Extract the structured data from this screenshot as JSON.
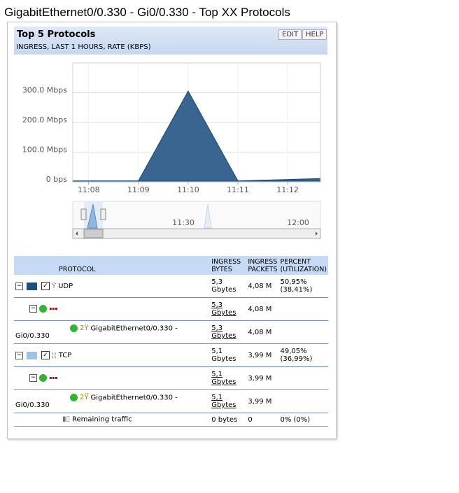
{
  "page_title": "GigabitEthernet0/0.330 - Gi0/0.330 - Top XX Protocols",
  "widget": {
    "title": "Top 5 Protocols",
    "subtitle": "INGRESS, LAST 1 HOURS, RATE (KBPS)",
    "buttons": [
      "EDIT",
      "HELP"
    ]
  },
  "chart_data": {
    "type": "area",
    "x": [
      667.68,
      669,
      670,
      671,
      672.66
    ],
    "xlim": [
      667.68,
      672.66
    ],
    "xticks": [
      {
        "value": 668,
        "label": "11:08"
      },
      {
        "value": 669,
        "label": "11:09"
      },
      {
        "value": 670,
        "label": "11:10"
      },
      {
        "value": 671,
        "label": "11:11"
      },
      {
        "value": 672,
        "label": "11:12"
      }
    ],
    "ylim": [
      0,
      400
    ],
    "yticks": [
      {
        "value": 0,
        "label": "0 bps"
      },
      {
        "value": 100,
        "label": "100.0 Mbps"
      },
      {
        "value": 200,
        "label": "200.0 Mbps"
      },
      {
        "value": 300,
        "label": "300.0 Mbps"
      }
    ],
    "stacked": true,
    "grid": true,
    "series": [
      {
        "name": "TCP",
        "color": "#9dc3e6",
        "values": [
          2,
          2,
          2,
          2,
          3
        ]
      },
      {
        "name": "UDP",
        "color": "#3a6591",
        "values": [
          1,
          1,
          303,
          1,
          8
        ]
      }
    ],
    "navigator_labels": [
      "11:30",
      "12:00"
    ]
  },
  "table": {
    "headers": [
      "PROTOCOL",
      "INGRESS BYTES",
      "INGRESS PACKETS",
      "PERCENT (UTILIZATION)"
    ],
    "rows": [
      {
        "name": "UDP",
        "bytes": "5,3 Gbytes",
        "packets": "4,08 M",
        "percent": "50,95% (38,41%)"
      },
      {
        "bytes": "5,3 Gbytes",
        "packets": "4,08 M"
      },
      {
        "name": "GigabitEthernet0/0.330 - Gi0/0.330",
        "bytes": "5,3 Gbytes",
        "packets": "4,08 M"
      },
      {
        "name": "TCP",
        "bytes": "5,1 Gbytes",
        "packets": "3,99 M",
        "percent": "49,05% (36,99%)"
      },
      {
        "bytes": "5,1 Gbytes",
        "packets": "3,99 M"
      },
      {
        "name": "GigabitEthernet0/0.330 - Gi0/0.330",
        "bytes": "5,1 Gbytes",
        "packets": "3,99 M"
      },
      {
        "name": "Remaining traffic",
        "bytes": "0 bytes",
        "packets": "0",
        "percent": "0% (0%)"
      }
    ]
  }
}
